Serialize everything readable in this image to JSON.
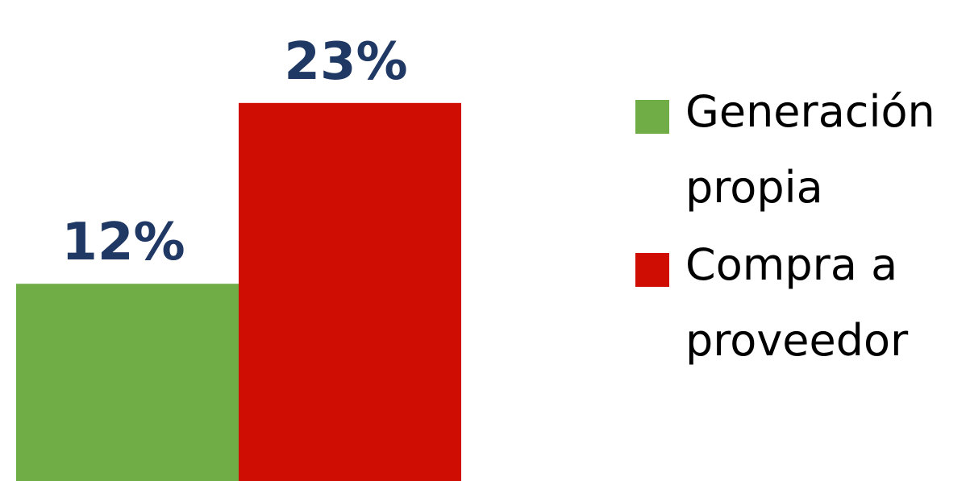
{
  "chart_data": {
    "type": "bar",
    "categories": [
      ""
    ],
    "series": [
      {
        "name": "Generación propia",
        "values": [
          12
        ],
        "color": "#70ad47",
        "label": "12%"
      },
      {
        "name": "Compra a proveedor",
        "values": [
          23
        ],
        "color": "#cf0d03",
        "label": "23%"
      }
    ],
    "title": "",
    "xlabel": "",
    "ylabel": "",
    "ylim": [
      0,
      25
    ],
    "grid": false,
    "legend_position": "right",
    "label_color": "#1f3864"
  }
}
